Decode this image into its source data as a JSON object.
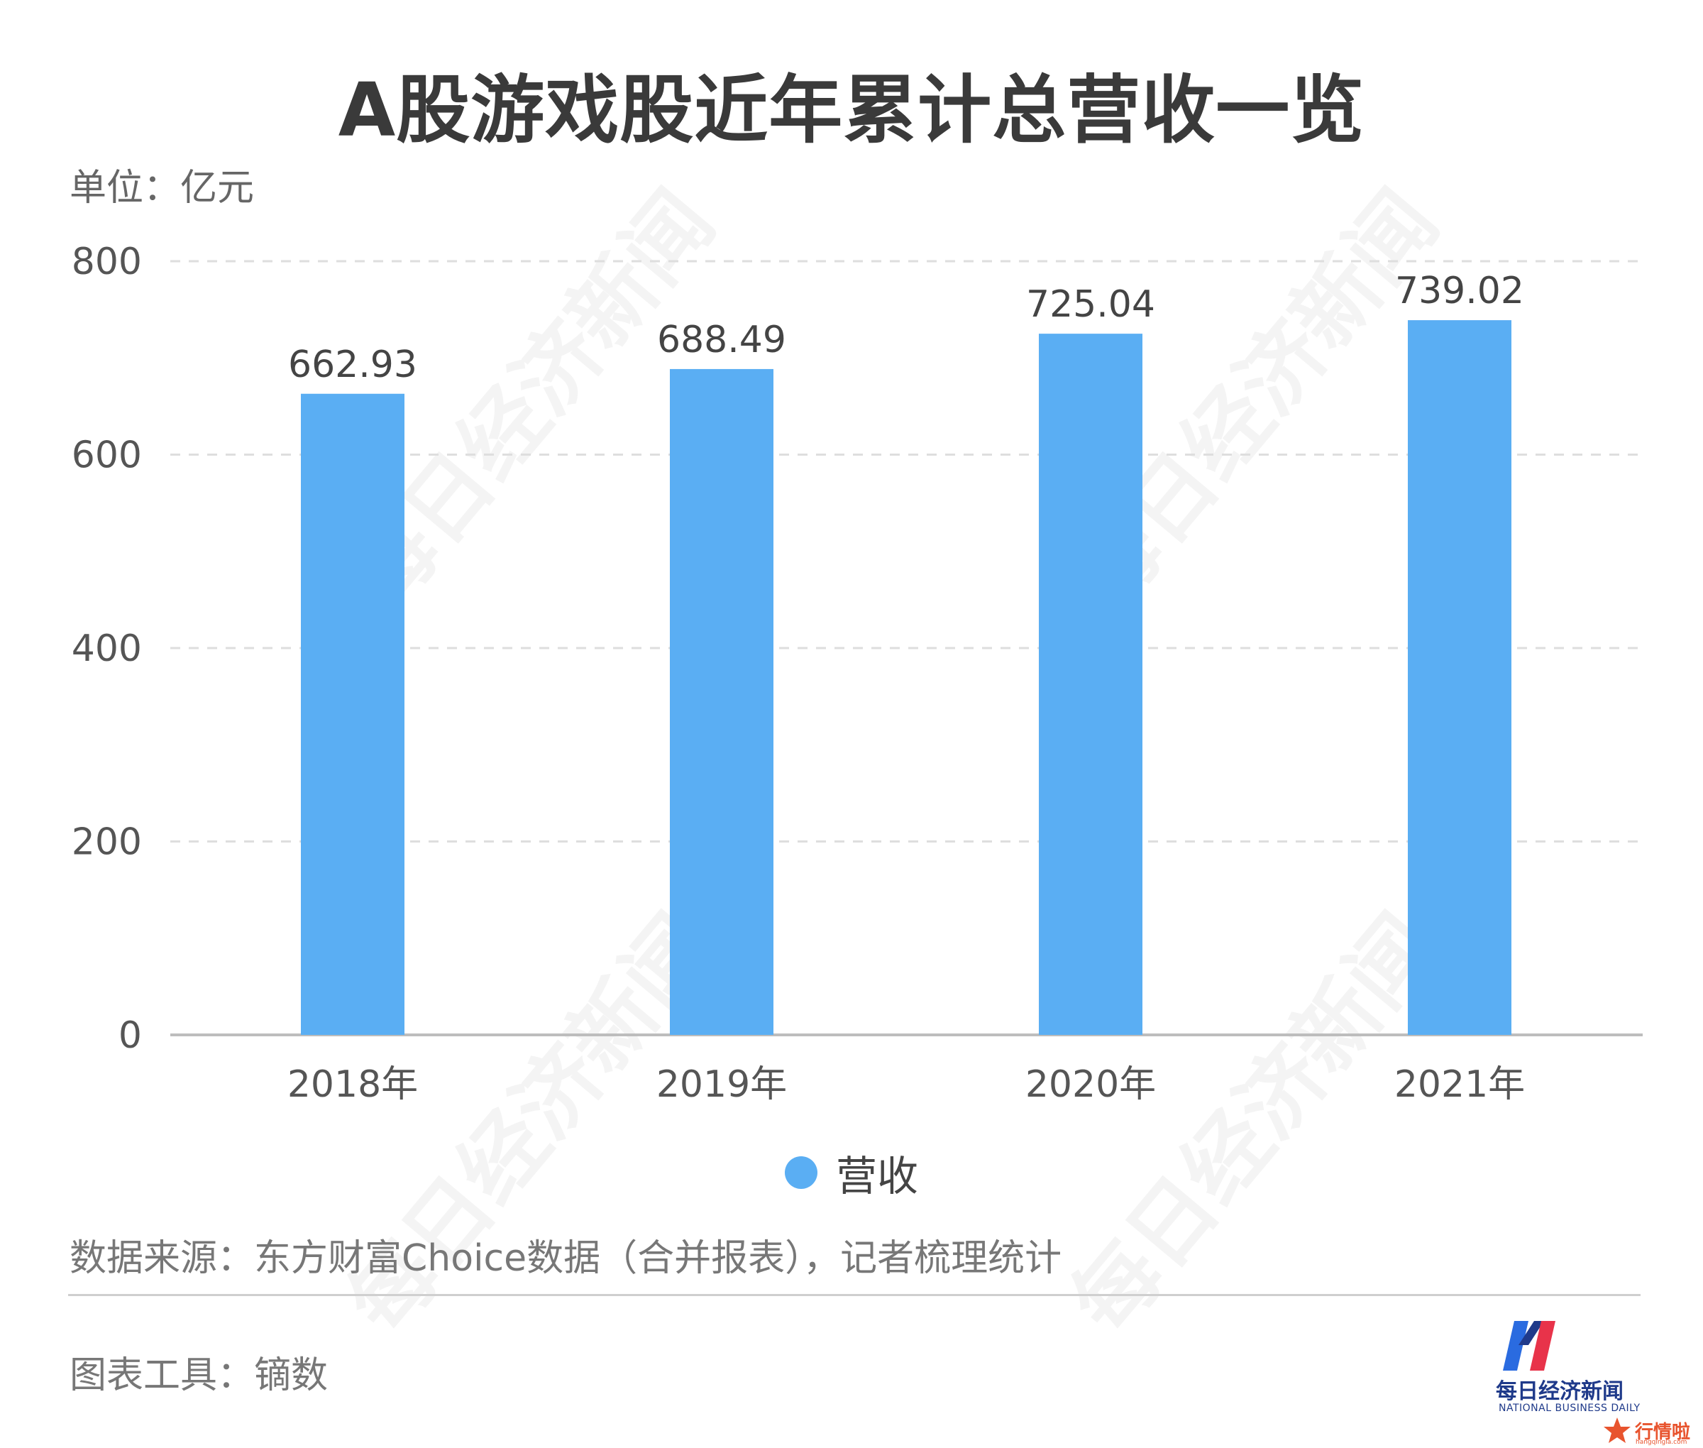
{
  "title": "A股游戏股近年累计总营收一览",
  "unit_label": "单位：亿元",
  "legend": {
    "label": "营收",
    "color": "#5aaef3"
  },
  "source_note": "数据来源：东方财富Choice数据（合并报表），记者梳理统计",
  "tool_note": "图表工具：镝数",
  "watermark_text": "每日经济新闻",
  "logo": {
    "name_cn": "每日经济新闻",
    "name_en": "NATIONAL BUSINESS DAILY",
    "badge": "行情啦",
    "badge_sub": "hangqingla.com"
  },
  "chart_data": {
    "type": "bar",
    "title": "A股游戏股近年累计总营收一览",
    "ylabel": "单位：亿元",
    "xlabel": "",
    "categories": [
      "2018年",
      "2019年",
      "2020年",
      "2021年"
    ],
    "series": [
      {
        "name": "营收",
        "values": [
          662.93,
          688.49,
          725.04,
          739.02
        ],
        "color": "#5aaef3"
      }
    ],
    "value_labels": [
      "662.93",
      "688.49",
      "725.04",
      "739.02"
    ],
    "ylim": [
      0,
      800
    ],
    "yticks": [
      0,
      200,
      400,
      600,
      800
    ],
    "grid": true,
    "grid_style": "dashed",
    "legend_position": "bottom-center"
  }
}
